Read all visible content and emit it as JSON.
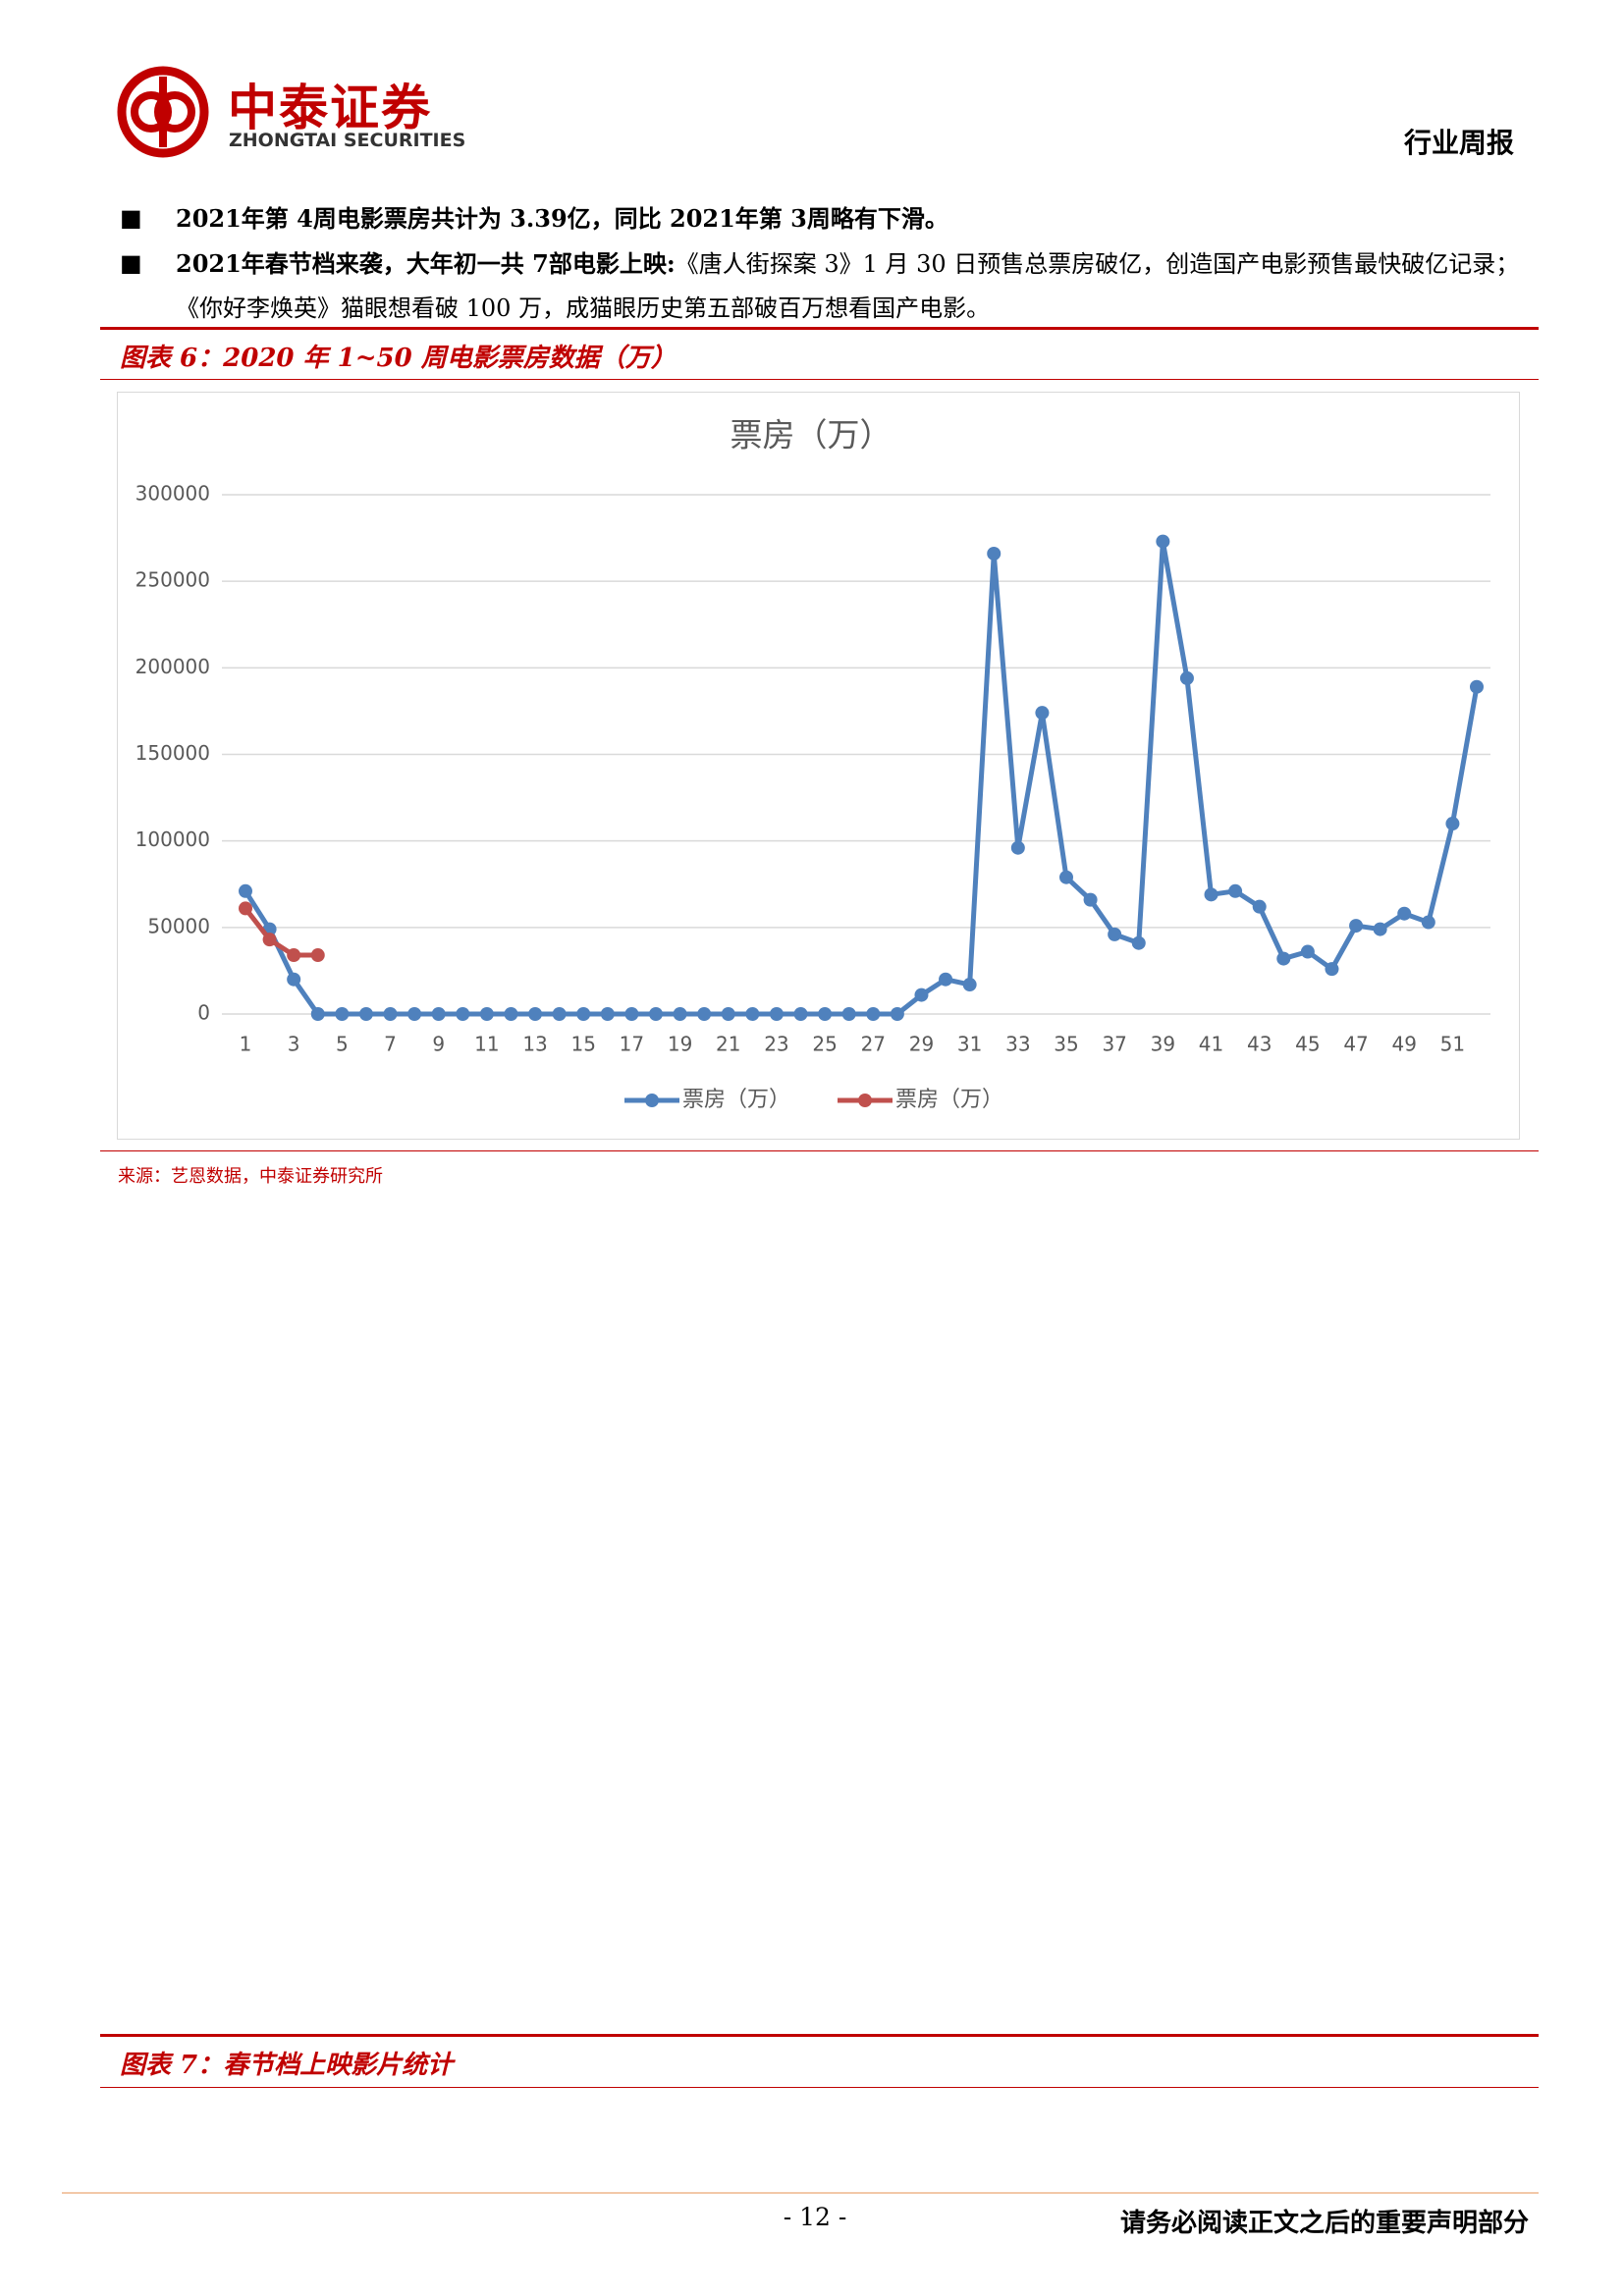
{
  "header": {
    "logo_cn": "中泰证券",
    "logo_en": "ZHONGTAI SECURITIES",
    "report_type": "行业周报"
  },
  "bullets": [
    {
      "bold": "2021年第 4周电影票房共计为 3.39亿，同比 2021年第 3周略有下滑。",
      "text": ""
    },
    {
      "bold": "2021年春节档来袭，大年初一共 7部电影上映:",
      "text": "《唐人街探案 3》1 月 30 日预售总票房破亿，创造国产电影预售最快破亿记录；《你好李焕英》猫眼想看破 100 万，成猫眼历史第五部破百万想看国产电影。"
    }
  ],
  "figure6": {
    "caption": "图表 6：2020 年 1~50 周电影票房数据（万）",
    "source": "来源：艺恩数据，中泰证券研究所"
  },
  "chart_data": {
    "type": "line",
    "title": "票房（万）",
    "categories": [
      1,
      null,
      3,
      null,
      5,
      null,
      7,
      null,
      9,
      null,
      11,
      null,
      13,
      null,
      15,
      null,
      17,
      null,
      19,
      null,
      21,
      null,
      23,
      null,
      25,
      null,
      27,
      null,
      29,
      null,
      31,
      null,
      33,
      null,
      35,
      null,
      37,
      null,
      39,
      null,
      41,
      null,
      43,
      null,
      45,
      null,
      47,
      null,
      49,
      null,
      51,
      null
    ],
    "series": [
      {
        "name": "票房（万）",
        "color": "#4f81bd",
        "values": [
          71000,
          49000,
          20000,
          0,
          0,
          0,
          0,
          0,
          0,
          0,
          0,
          0,
          0,
          0,
          0,
          0,
          0,
          0,
          0,
          0,
          0,
          0,
          0,
          0,
          0,
          0,
          0,
          0,
          11000,
          20000,
          17000,
          266000,
          96000,
          174000,
          79000,
          66000,
          46000,
          41000,
          273000,
          194000,
          69000,
          71000,
          62000,
          32000,
          36000,
          26000,
          51000,
          49000,
          58000,
          53000,
          110000,
          189000
        ]
      },
      {
        "name": "票房（万）",
        "color": "#c0504d",
        "values": [
          61000,
          43000,
          34000,
          34000,
          null,
          null,
          null,
          null,
          null,
          null,
          null,
          null,
          null,
          null,
          null,
          null,
          null,
          null,
          null,
          null,
          null,
          null,
          null,
          null,
          null,
          null,
          null,
          null,
          null,
          null,
          null,
          null,
          null,
          null,
          null,
          null,
          null,
          null,
          null,
          null,
          null,
          null,
          null,
          null,
          null,
          null,
          null,
          null,
          null,
          null,
          null,
          null
        ]
      }
    ],
    "ylim": [
      0,
      300000
    ],
    "yticks": [
      0,
      50000,
      100000,
      150000,
      200000,
      250000,
      300000
    ],
    "grid": true,
    "legend": "bottom"
  },
  "figure7": {
    "caption": "图表 7：春节档上映影片统计"
  },
  "footer": {
    "page": "- 12 -",
    "notice": "请务必阅读正文之后的重要声明部分"
  }
}
